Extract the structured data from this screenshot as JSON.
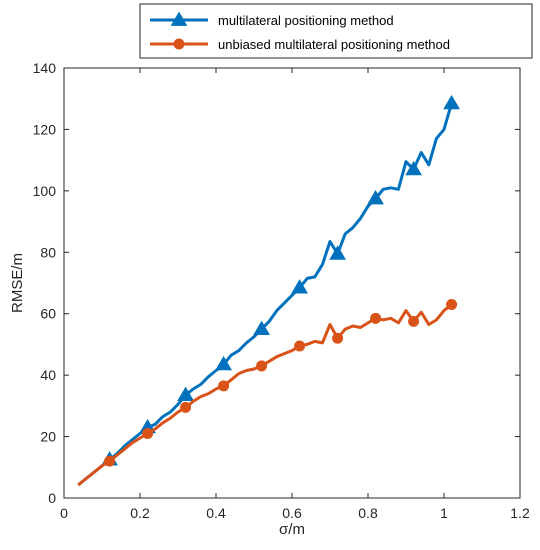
{
  "chart_data": {
    "type": "line",
    "xlabel": "σ/m",
    "ylabel": "RMSE/m",
    "xlim": [
      0,
      1.2
    ],
    "ylim": [
      0,
      140
    ],
    "xticks": [
      "0",
      "0.2",
      "0.4",
      "0.6",
      "0.8",
      "1",
      "1.2"
    ],
    "yticks": [
      "0",
      "20",
      "40",
      "60",
      "80",
      "100",
      "120",
      "140"
    ],
    "grid": false,
    "legend_position": "top",
    "series": [
      {
        "name": "multilateral positioning method",
        "color": "#0072BD",
        "marker": "triangle",
        "x": [
          0.04,
          0.06,
          0.08,
          0.1,
          0.12,
          0.14,
          0.16,
          0.18,
          0.2,
          0.22,
          0.24,
          0.26,
          0.28,
          0.3,
          0.32,
          0.34,
          0.36,
          0.38,
          0.4,
          0.42,
          0.44,
          0.46,
          0.48,
          0.5,
          0.52,
          0.54,
          0.56,
          0.58,
          0.6,
          0.62,
          0.64,
          0.66,
          0.68,
          0.7,
          0.72,
          0.74,
          0.76,
          0.78,
          0.8,
          0.82,
          0.84,
          0.86,
          0.88,
          0.9,
          0.92,
          0.94,
          0.96,
          0.98,
          1.0,
          1.02
        ],
        "y": [
          4.5,
          6.5,
          8.5,
          10.5,
          12.5,
          14.5,
          17,
          19,
          21,
          23,
          24,
          26.5,
          28,
          30.5,
          33.5,
          35.5,
          37,
          39.5,
          41.5,
          43.5,
          46.5,
          48,
          50.5,
          52.5,
          55,
          57.5,
          61,
          63.5,
          66,
          68.5,
          71.5,
          72,
          76,
          83.5,
          79.5,
          86,
          88,
          91,
          95,
          97.5,
          100.5,
          101,
          100.5,
          109.5,
          107,
          112.5,
          108.5,
          117,
          120,
          128.5
        ],
        "markers_x": [
          0.12,
          0.22,
          0.32,
          0.42,
          0.52,
          0.62,
          0.72,
          0.82,
          0.92,
          1.02
        ],
        "markers_y": [
          12.5,
          23,
          33.5,
          43.5,
          55,
          68.5,
          79.5,
          97.5,
          107,
          128.5
        ]
      },
      {
        "name": "unbiased multilateral positioning method",
        "color": "#D95319",
        "marker": "circle",
        "x": [
          0.04,
          0.06,
          0.08,
          0.1,
          0.12,
          0.14,
          0.16,
          0.18,
          0.2,
          0.22,
          0.24,
          0.26,
          0.28,
          0.3,
          0.32,
          0.34,
          0.36,
          0.38,
          0.4,
          0.42,
          0.44,
          0.46,
          0.48,
          0.5,
          0.52,
          0.54,
          0.56,
          0.58,
          0.6,
          0.62,
          0.64,
          0.66,
          0.68,
          0.7,
          0.72,
          0.74,
          0.76,
          0.78,
          0.8,
          0.82,
          0.84,
          0.86,
          0.88,
          0.9,
          0.92,
          0.94,
          0.96,
          0.98,
          1.0,
          1.02
        ],
        "y": [
          4.5,
          6.5,
          8.5,
          10.5,
          12,
          14,
          16,
          18,
          19.5,
          21,
          22.5,
          24.5,
          26,
          28,
          29.5,
          31.5,
          33,
          34,
          35.5,
          36.5,
          38.5,
          40.5,
          41.5,
          42,
          43,
          44.5,
          46,
          47,
          48,
          49.5,
          50,
          51,
          50.5,
          56.5,
          52,
          55,
          56,
          55.5,
          57,
          58.5,
          58,
          58.5,
          57,
          61,
          57.5,
          60.5,
          56.5,
          58,
          61,
          63
        ],
        "markers_x": [
          0.12,
          0.22,
          0.32,
          0.42,
          0.52,
          0.62,
          0.72,
          0.82,
          0.92,
          1.02
        ],
        "markers_y": [
          12,
          21,
          29.5,
          36.5,
          43,
          49.5,
          52,
          58.5,
          57.5,
          63
        ]
      }
    ]
  }
}
